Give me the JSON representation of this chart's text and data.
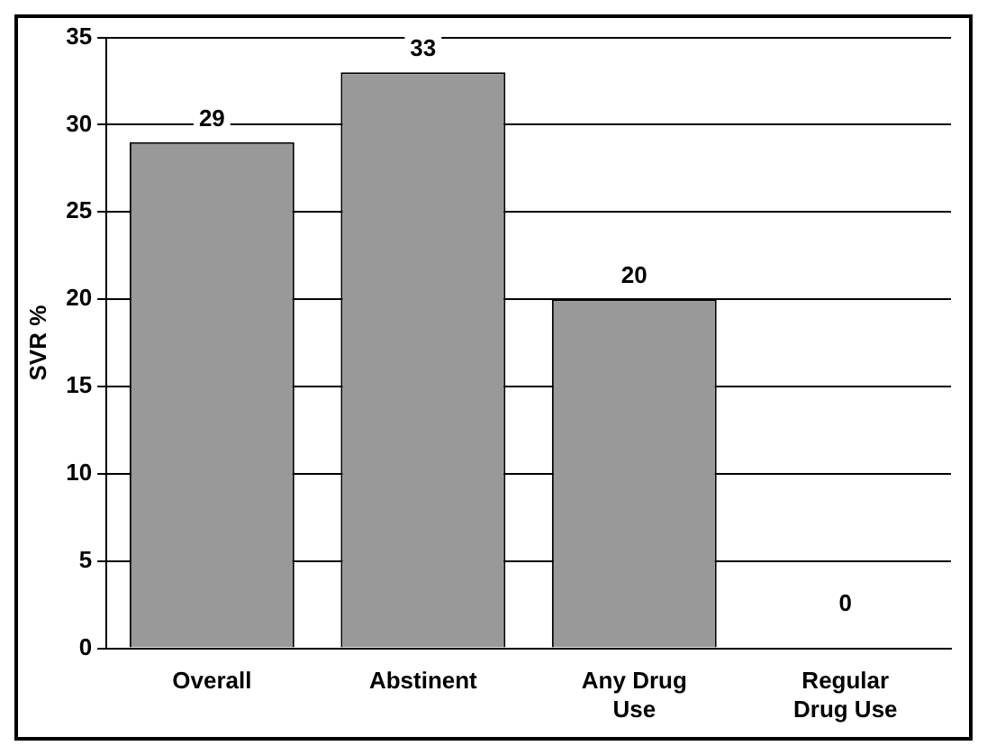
{
  "chart_data": {
    "type": "bar",
    "ylabel": "SVR %",
    "categories": [
      "Overall",
      "Abstinent",
      "Any Drug Use",
      "Regular Drug Use"
    ],
    "values": [
      29,
      33,
      20,
      0
    ],
    "color": "#999999",
    "ylim": [
      0,
      35
    ],
    "yticks": [
      0,
      5,
      10,
      15,
      20,
      25,
      30,
      35
    ],
    "grid": "y",
    "data_labels": true,
    "legend": false
  }
}
